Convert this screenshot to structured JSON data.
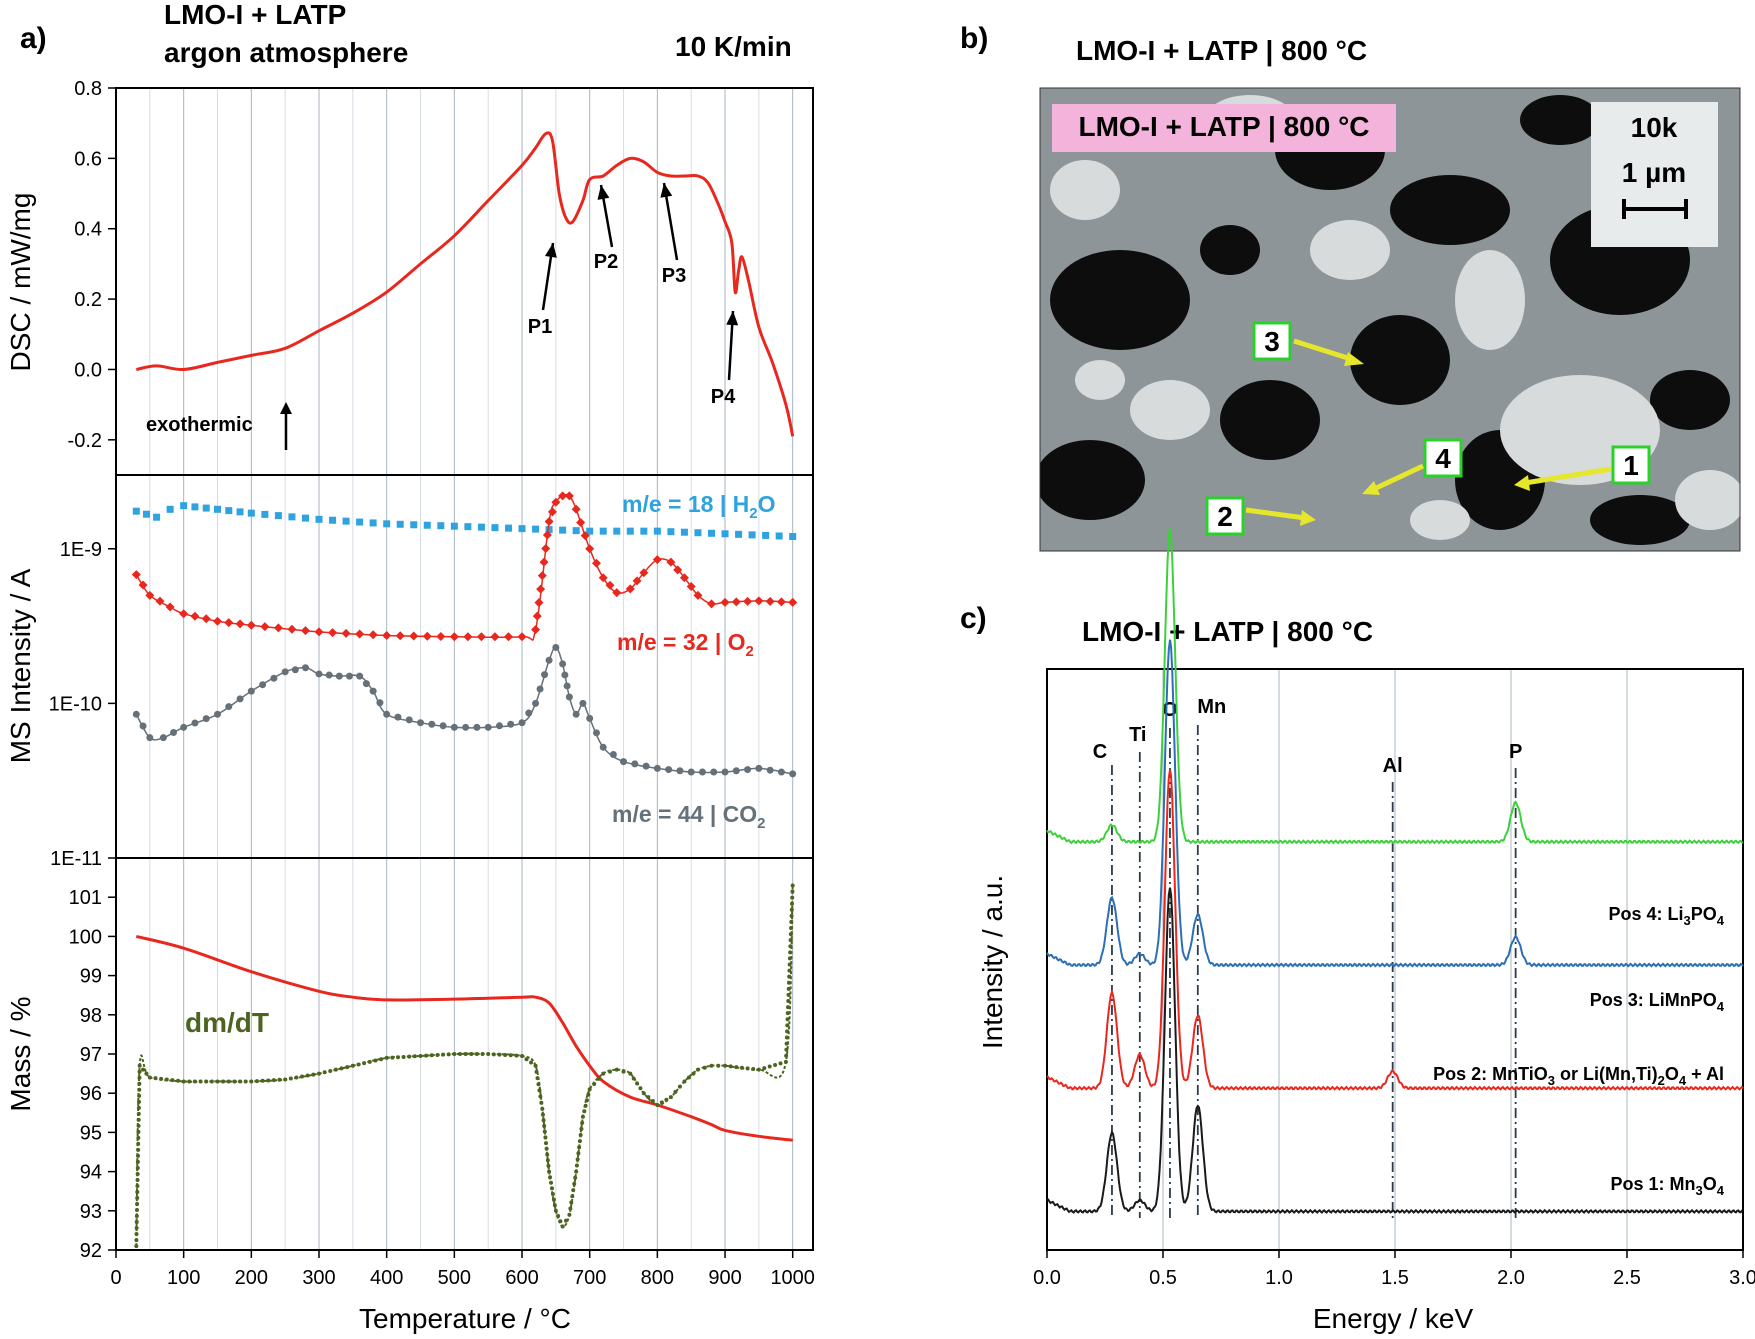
{
  "panel_a": {
    "label": "a)",
    "title_line1": "LMO-I + LATP",
    "title_line2": "argon atmosphere",
    "rate": "10 K/min",
    "xlabel": "Temperature  /  °C",
    "x_ticks": [
      "0",
      "100",
      "200",
      "300",
      "400",
      "500",
      "600",
      "700",
      "800",
      "900",
      "1000"
    ]
  },
  "panel_b": {
    "label": "b)",
    "title": "LMO-I + LATP | 800 °C",
    "overlay_label": "LMO-I + LATP  |  800 °C",
    "magnification": "10k",
    "scale_bar": "1 µm",
    "markers": [
      "1",
      "2",
      "3",
      "4"
    ]
  },
  "panel_c": {
    "label": "c)",
    "title": "LMO-I + LATP | 800 °C"
  },
  "chart_data": [
    {
      "id": "dsc",
      "type": "line",
      "ylabel": "DSC  /  mW/mg",
      "xlim": [
        0,
        1030
      ],
      "ylim": [
        -0.3,
        0.8
      ],
      "y_ticks": [
        "-0.2",
        "0.0",
        "0.2",
        "0.4",
        "0.6",
        "0.8"
      ],
      "annotation_exo": "exothermic",
      "peaks": [
        {
          "label": "P1",
          "x": 655
        },
        {
          "label": "P2",
          "x": 720
        },
        {
          "label": "P3",
          "x": 810
        },
        {
          "label": "P4",
          "x": 910
        }
      ],
      "series": [
        {
          "color": "#e8281e",
          "x": [
            30,
            60,
            100,
            150,
            200,
            250,
            300,
            350,
            400,
            450,
            500,
            550,
            600,
            620,
            635,
            645,
            655,
            665,
            675,
            690,
            700,
            720,
            740,
            760,
            780,
            800,
            820,
            840,
            860,
            875,
            890,
            900,
            910,
            915,
            920,
            925,
            935,
            950,
            970,
            990,
            1000
          ],
          "y": [
            0.0,
            0.01,
            0.0,
            0.02,
            0.04,
            0.06,
            0.11,
            0.16,
            0.22,
            0.3,
            0.38,
            0.48,
            0.58,
            0.63,
            0.67,
            0.65,
            0.5,
            0.43,
            0.42,
            0.48,
            0.54,
            0.55,
            0.58,
            0.6,
            0.59,
            0.56,
            0.55,
            0.55,
            0.55,
            0.53,
            0.47,
            0.42,
            0.36,
            0.22,
            0.28,
            0.32,
            0.25,
            0.12,
            0.02,
            -0.1,
            -0.19
          ]
        }
      ]
    },
    {
      "id": "ms",
      "type": "scatter",
      "yscale": "log",
      "ylabel": "MS Intensity  /  A",
      "xlim": [
        0,
        1030
      ],
      "ylim": [
        1e-11,
        3e-09
      ],
      "y_ticks": [
        "1E-9",
        "1E-10",
        "1E-11"
      ],
      "series": [
        {
          "name": "m/e = 18 | H₂O",
          "color": "#2ea3e0",
          "marker": "square",
          "x": [
            30,
            60,
            80,
            100,
            150,
            200,
            300,
            400,
            500,
            600,
            700,
            800,
            900,
            1000
          ],
          "y": [
            1.75e-09,
            1.6e-09,
            1.8e-09,
            1.9e-09,
            1.8e-09,
            1.7e-09,
            1.55e-09,
            1.45e-09,
            1.4e-09,
            1.35e-09,
            1.3e-09,
            1.3e-09,
            1.25e-09,
            1.2e-09
          ]
        },
        {
          "name": "m/e = 32 | O₂",
          "color": "#e8281e",
          "marker": "diamond",
          "x": [
            30,
            50,
            80,
            100,
            150,
            200,
            300,
            400,
            500,
            600,
            620,
            640,
            650,
            660,
            670,
            680,
            700,
            720,
            740,
            760,
            780,
            800,
            820,
            840,
            860,
            880,
            900,
            950,
            1000
          ],
          "y": [
            6.8e-10,
            5e-10,
            4.2e-10,
            3.8e-10,
            3.4e-10,
            3.2e-10,
            2.9e-10,
            2.75e-10,
            2.7e-10,
            2.7e-10,
            3e-10,
            1.5e-09,
            2e-09,
            2.2e-09,
            2.2e-09,
            1.8e-09,
            1e-09,
            6.5e-10,
            5.2e-10,
            5.5e-10,
            7e-10,
            8.5e-10,
            8.2e-10,
            6.5e-10,
            5e-10,
            4.4e-10,
            4.5e-10,
            4.6e-10,
            4.5e-10
          ]
        },
        {
          "name": "m/e = 44 | CO₂",
          "color": "#657078",
          "marker": "circle",
          "x": [
            30,
            50,
            70,
            100,
            150,
            200,
            250,
            280,
            300,
            330,
            360,
            380,
            400,
            450,
            500,
            550,
            600,
            620,
            640,
            650,
            660,
            670,
            680,
            690,
            700,
            720,
            750,
            800,
            850,
            900,
            950,
            1000
          ],
          "y": [
            8.5e-11,
            6e-11,
            6e-11,
            7e-11,
            8.5e-11,
            1.2e-10,
            1.6e-10,
            1.7e-10,
            1.55e-10,
            1.5e-10,
            1.5e-10,
            1.2e-10,
            8.5e-11,
            7.5e-11,
            7e-11,
            7e-11,
            7.5e-11,
            1e-10,
            1.9e-10,
            2.3e-10,
            1.8e-10,
            1.1e-10,
            8.5e-11,
            1e-10,
            8e-11,
            5.2e-11,
            4.2e-11,
            3.8e-11,
            3.6e-11,
            3.6e-11,
            3.8e-11,
            3.5e-11
          ]
        }
      ]
    },
    {
      "id": "tg",
      "type": "line",
      "ylabel": "Mass /  %",
      "xlim": [
        0,
        1030
      ],
      "ylim": [
        92,
        102
      ],
      "y_ticks": [
        "92",
        "93",
        "94",
        "95",
        "96",
        "97",
        "98",
        "99",
        "100",
        "101"
      ],
      "series": [
        {
          "color": "#e8281e",
          "x": [
            30,
            100,
            200,
            300,
            350,
            400,
            500,
            600,
            620,
            640,
            660,
            680,
            700,
            720,
            760,
            800,
            850,
            880,
            900,
            950,
            1000
          ],
          "y": [
            100.0,
            99.7,
            99.1,
            98.6,
            98.45,
            98.38,
            98.4,
            98.45,
            98.45,
            98.3,
            97.8,
            97.2,
            96.7,
            96.3,
            95.9,
            95.7,
            95.4,
            95.2,
            95.05,
            94.9,
            94.8
          ]
        },
        {
          "name": "dm/dT",
          "color": "#4c6420",
          "marker": "circle",
          "x": [
            30,
            35,
            50,
            100,
            150,
            200,
            250,
            300,
            350,
            400,
            450,
            500,
            550,
            600,
            620,
            630,
            640,
            650,
            660,
            670,
            680,
            690,
            700,
            720,
            740,
            760,
            780,
            800,
            820,
            840,
            860,
            880,
            900,
            950,
            990,
            1000
          ],
          "y": [
            92.1,
            96.7,
            96.4,
            96.3,
            96.3,
            96.3,
            96.35,
            96.5,
            96.7,
            96.9,
            96.95,
            97.0,
            97.0,
            96.95,
            96.7,
            95.6,
            94.0,
            93.0,
            92.6,
            92.9,
            94.0,
            95.4,
            96.1,
            96.5,
            96.6,
            96.5,
            96.0,
            95.7,
            95.9,
            96.3,
            96.6,
            96.7,
            96.7,
            96.6,
            96.8,
            101.3
          ]
        }
      ]
    },
    {
      "id": "eds",
      "type": "line",
      "xlabel": "Energy  /  keV",
      "ylabel": "Intensity  /  a.u.",
      "xlim": [
        0,
        3
      ],
      "x_ticks": [
        "0.0",
        "0.5",
        "1.0",
        "1.5",
        "2.0",
        "2.5",
        "3.0"
      ],
      "element_lines": [
        {
          "label": "C",
          "x": 0.28
        },
        {
          "label": "Ti",
          "x": 0.4
        },
        {
          "label": "O",
          "x": 0.53
        },
        {
          "label": "Mn",
          "x": 0.65
        },
        {
          "label": "Al",
          "x": 1.49
        },
        {
          "label": "P",
          "x": 2.02
        }
      ],
      "series": [
        {
          "name": "Pos 1: Mn₃O₄",
          "label_text": "Pos 1: Mn",
          "label_sub1": "3",
          "label_mid": "O",
          "label_sub2": "4",
          "label_tail": "",
          "color": "#1a1a1a",
          "baseline": 0.06,
          "peaks": [
            [
              0.28,
              0.14
            ],
            [
              0.4,
              0.02
            ],
            [
              0.53,
              0.58
            ],
            [
              0.65,
              0.19
            ]
          ]
        },
        {
          "name": "Pos 2: MnTiO₃ or Li(Mn,Ti)₂O₄ + Al",
          "label_text": "Pos 2: MnTiO",
          "label_sub1": "3",
          "label_mid": " or Li(Mn,Ti)",
          "label_sub2": "2",
          "label_tail": "O",
          "label_sub3": "4",
          "label_end": " + Al",
          "color": "#e8281e",
          "baseline": 0.28,
          "peaks": [
            [
              0.28,
              0.17
            ],
            [
              0.4,
              0.06
            ],
            [
              0.53,
              0.57
            ],
            [
              0.65,
              0.13
            ],
            [
              1.49,
              0.03
            ]
          ]
        },
        {
          "name": "Pos 3: LiMnPO₄",
          "label_text": "Pos 3: LiMnPO",
          "label_sub1": "4",
          "color": "#2c6fb5",
          "baseline": 0.5,
          "peaks": [
            [
              0.28,
              0.12
            ],
            [
              0.4,
              0.02
            ],
            [
              0.53,
              0.58
            ],
            [
              0.65,
              0.09
            ],
            [
              2.02,
              0.05
            ]
          ]
        },
        {
          "name": "Pos 4: Li₃PO₄",
          "label_text": "Pos 4: Li",
          "label_sub1": "3",
          "label_mid": "PO",
          "label_sub2": "4",
          "color": "#3cd13a",
          "baseline": 0.72,
          "peaks": [
            [
              0.28,
              0.03
            ],
            [
              0.53,
              0.56
            ],
            [
              2.02,
              0.07
            ]
          ]
        }
      ]
    }
  ]
}
